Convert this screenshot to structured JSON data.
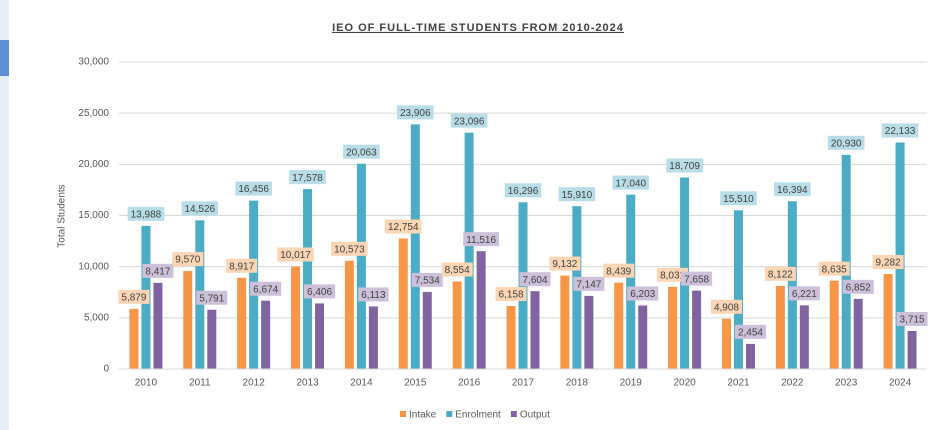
{
  "chart_data": {
    "type": "bar",
    "title": "IEO OF FULL-TIME STUDENTS FROM 2010-2024",
    "y_label": "Total Students",
    "categories": [
      "2010",
      "2011",
      "2012",
      "2013",
      "2014",
      "2015",
      "2016",
      "2017",
      "2018",
      "2019",
      "2020",
      "2021",
      "2022",
      "2023",
      "2024"
    ],
    "series": [
      {
        "name": "Intake",
        "color": "#f79646",
        "label_bg": "#fcd5b4",
        "values": [
          5879,
          9570,
          8917,
          10017,
          10573,
          12754,
          8554,
          6158,
          9132,
          8439,
          8031,
          4908,
          8122,
          8635,
          9282
        ],
        "value_labels": [
          "5,879",
          "9,570",
          "8,917",
          "10,017",
          "10,573",
          "12,754",
          "8,554",
          "6,158",
          "9,132",
          "8,439",
          "8,031",
          "4,908",
          "8,122",
          "8,635",
          "9,282"
        ]
      },
      {
        "name": "Enrolment",
        "color": "#4bacc6",
        "label_bg": "#b7dee8",
        "values": [
          13988,
          14526,
          16456,
          17578,
          20063,
          23906,
          23096,
          16296,
          15910,
          17040,
          18709,
          15510,
          16394,
          20930,
          22133
        ],
        "value_labels": [
          "13,988",
          "14,526",
          "16,456",
          "17,578",
          "20,063",
          "23,906",
          "23,096",
          "16,296",
          "15,910",
          "17,040",
          "18,709",
          "15,510",
          "16,394",
          "20,930",
          "22,133"
        ]
      },
      {
        "name": "Output",
        "color": "#8064a2",
        "label_bg": "#ccc0da",
        "values": [
          8417,
          5791,
          6674,
          6406,
          6113,
          7534,
          11516,
          7604,
          7147,
          6203,
          7658,
          2454,
          6221,
          6852,
          3715
        ],
        "value_labels": [
          "8,417",
          "5,791",
          "6,674",
          "6,406",
          "6,113",
          "7,534",
          "11,516",
          "7,604",
          "7,147",
          "6,203",
          "7,658",
          "2,454",
          "6,221",
          "6,852",
          "3,715"
        ]
      }
    ],
    "ylim": [
      0,
      30000
    ],
    "yticks": [
      0,
      {
        "value": 5000,
        "label": "5,000"
      },
      {
        "value": 10000,
        "label": "10,000"
      },
      {
        "value": 15000,
        "label": "15,000"
      },
      {
        "value": 20000,
        "label": "20,000"
      },
      {
        "value": 25000,
        "label": "25,000"
      },
      {
        "value": 30000,
        "label": "30,000"
      }
    ],
    "grid": true,
    "legend": "bottom"
  }
}
